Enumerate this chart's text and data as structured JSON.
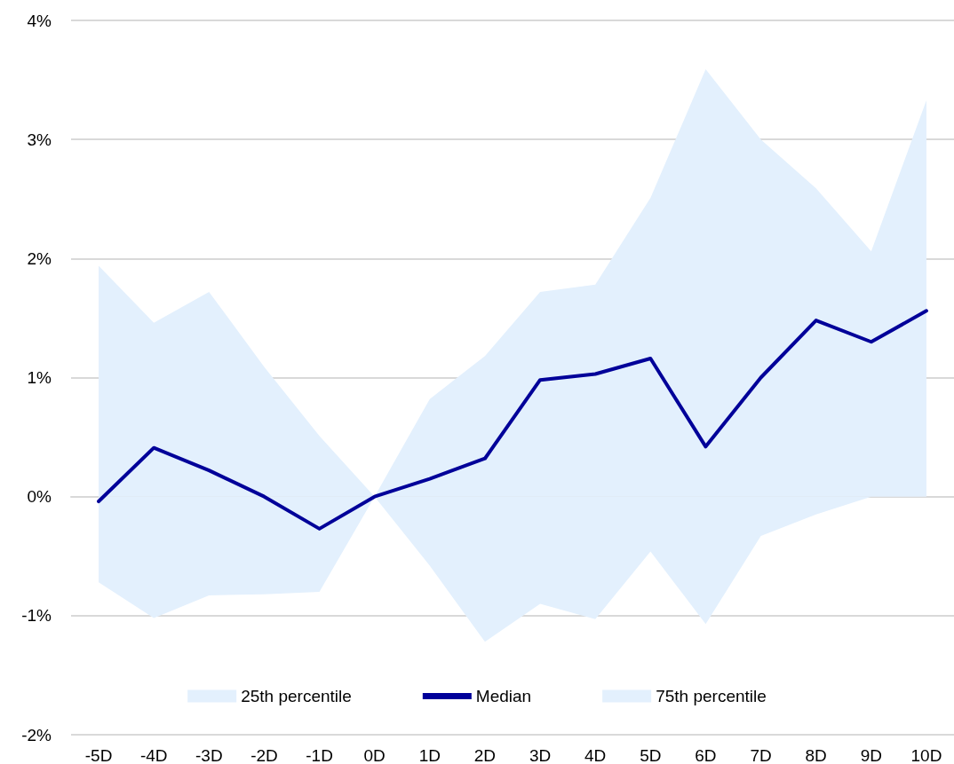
{
  "chart_data": {
    "type": "line",
    "categories": [
      "-5D",
      "-4D",
      "-3D",
      "-2D",
      "-1D",
      "0D",
      "1D",
      "2D",
      "3D",
      "4D",
      "5D",
      "6D",
      "7D",
      "8D",
      "9D",
      "10D"
    ],
    "series": [
      {
        "name": "25th percentile",
        "type": "area",
        "color": "#e3f0fd",
        "values": [
          -0.72,
          -1.02,
          -0.83,
          -0.82,
          -0.8,
          0,
          -0.58,
          -1.22,
          -0.9,
          -1.03,
          -0.46,
          -1.07,
          -0.33,
          -0.15,
          0,
          0
        ]
      },
      {
        "name": "Median",
        "type": "line",
        "color": "#000099",
        "values": [
          -0.04,
          0.41,
          0.22,
          0,
          -0.27,
          0,
          0.15,
          0.32,
          0.98,
          1.03,
          1.16,
          0.42,
          1.0,
          1.48,
          1.3,
          1.56
        ]
      },
      {
        "name": "75th percentile",
        "type": "area",
        "color": "#e3f0fd",
        "values": [
          1.94,
          1.46,
          1.72,
          1.09,
          0.51,
          0,
          0.82,
          1.18,
          1.72,
          1.78,
          2.51,
          3.59,
          3.0,
          2.59,
          2.06,
          3.33
        ]
      }
    ],
    "ylim": [
      -2,
      4
    ],
    "yticks": [
      {
        "value": -2,
        "label": "-2%"
      },
      {
        "value": -1,
        "label": "-1%"
      },
      {
        "value": 0,
        "label": "0%"
      },
      {
        "value": 1,
        "label": "1%"
      },
      {
        "value": 2,
        "label": "2%"
      },
      {
        "value": 3,
        "label": "3%"
      },
      {
        "value": 4,
        "label": "4%"
      }
    ],
    "grid": "y",
    "legend": "bottom",
    "marker": "none",
    "line_style": "solid"
  }
}
